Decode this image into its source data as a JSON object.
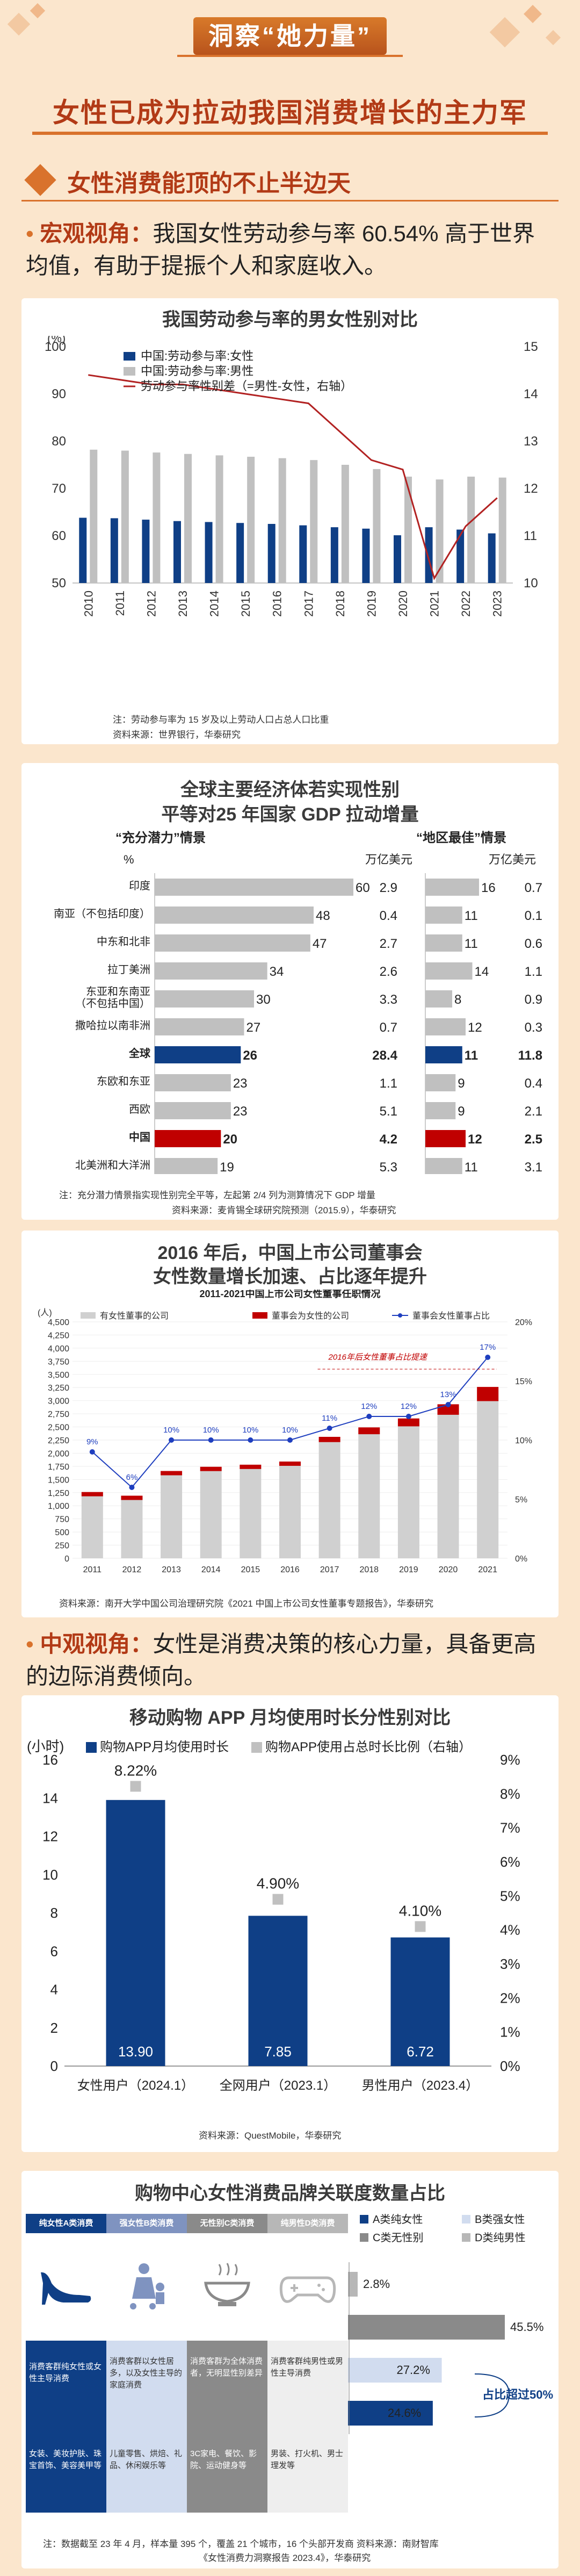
{
  "header": {
    "banner": "洞察“她力量”",
    "subtitle": "女性已成为拉动我国消费增长的主力军"
  },
  "section1": {
    "title": "女性消费能顶的不止半边天",
    "bullet_key": "宏观视角：",
    "bullet_text": "我国女性劳动参与率 60.54% 高于世界均值，有助于提振个人和家庭收入。"
  },
  "chart1": {
    "title": "我国劳动参与率的男女性别对比",
    "unit_left": "(%)",
    "legend": [
      "中国:劳动参与率:女性",
      "中国:劳动参与率:男性",
      "劳动参与率性别差（=男性-女性，右轴）"
    ],
    "note1": "注：劳动参与率为 15 岁及以上劳动人口占总人口比重",
    "note2": "资料来源：世界银行，华泰研究"
  },
  "chart2": {
    "title_line1": "全球主要经济体若实现性别",
    "title_line2": "平等对25 年国家 GDP 拉动增量",
    "col1_head": "“充分潜力”情景",
    "col2_head": "“地区最佳”情景",
    "pct_label": "%",
    "unit1": "万亿美元",
    "unit2": "万亿美元",
    "note1": "注：充分潜力情景指实现性别完全平等，左起第 2/4 列为测算情况下 GDP 增量",
    "note2": "资料来源：麦肯锡全球研究院预测（2015.9），华泰研究"
  },
  "chart3": {
    "title_line1": "2016 年后，中国上市公司董事会",
    "title_line2": "女性数量增长加速、占比逐年提升",
    "inner_title": "2011-2021中国上市公司女性董事任职情况",
    "unit_left": "(人)",
    "legend": [
      "有女性董事的公司",
      "董事会为女性的公司",
      "董事会女性董事占比"
    ],
    "annotation": "2016年后女性董事占比提速",
    "note": "资料来源：南开大学中国公司治理研究院《2021 中国上市公司女性董事专题报告》，华泰研究"
  },
  "section2": {
    "bullet_key": "中观视角：",
    "bullet_text": "女性是消费决策的核心力量，具备更高的边际消费倾向。"
  },
  "chart4": {
    "title": "移动购物 APP 月均使用时长分性别对比",
    "unit_left": "(小时)",
    "legend": [
      "购物APP月均使用时长",
      "购物APP使用占总时长比例（右轴）"
    ],
    "note": "资料来源：QuestMobile，华泰研究"
  },
  "chart5": {
    "title": "购物中心女性消费品牌关联度数量占比",
    "table_heads": [
      "纯女性A类消费",
      "强女性B类消费",
      "无性别C类消费",
      "纯男性D类消费"
    ],
    "row1": [
      "消费客群纯女性或女性主导消费",
      "消费客群以女性居多，以及女性主导的家庭消费",
      "消费客群为全体消费者，无明显性别差异",
      "消费客群纯男性或男性主导消费"
    ],
    "row2": [
      "女装、美妆护肤、珠宝首饰、美容美甲等",
      "儿童零售、烘焙、礼品、休闲娱乐等",
      "3C家电、餐饮、影院、运动健身等",
      "男装、打火机、男士理发等"
    ],
    "legend": [
      "A类纯女性",
      "B类强女性",
      "C类无性别",
      "D类纯男性"
    ],
    "bar_labels": [
      "2.8%",
      "45.5%",
      "27.2%",
      "24.6%"
    ],
    "callout": "占比超过50%",
    "note1": "注：数据截至 23 年 4 月，样本量 395 个，覆盖 21 个城市，16 个头部开发商 资料来源：南财智库",
    "note2": "《女性消费力洞察报告 2023.4》，华泰研究"
  },
  "chart_data": [
    {
      "type": "bar",
      "title": "我国劳动参与率的男女性别对比",
      "categories": [
        "2010",
        "2011",
        "2012",
        "2013",
        "2014",
        "2015",
        "2016",
        "2017",
        "2018",
        "2019",
        "2020",
        "2021",
        "2022",
        "2023"
      ],
      "series": [
        {
          "name": "中国:劳动参与率:女性",
          "values": [
            63.8,
            63.7,
            63.4,
            63.1,
            62.9,
            62.7,
            62.5,
            62.2,
            61.8,
            61.5,
            60.1,
            61.8,
            61.3,
            60.5
          ]
        },
        {
          "name": "中国:劳动参与率:男性",
          "values": [
            78.2,
            78.0,
            77.6,
            77.3,
            77.0,
            76.7,
            76.4,
            76.0,
            75.0,
            74.1,
            72.5,
            71.9,
            72.5,
            72.3
          ]
        },
        {
          "name": "劳动参与率性别差（右轴）",
          "values": [
            14.4,
            14.3,
            14.2,
            14.2,
            14.1,
            14.0,
            13.9,
            13.8,
            13.2,
            12.6,
            12.4,
            10.1,
            11.2,
            11.8
          ]
        }
      ],
      "ylim": [
        50,
        100
      ],
      "y2lim": [
        10,
        15
      ],
      "yticks": [
        50,
        60,
        70,
        80,
        90,
        100
      ],
      "y2ticks": [
        10,
        11,
        12,
        13,
        14,
        15
      ]
    },
    {
      "type": "bar",
      "title": "全球主要经济体若实现性别平等对25年国家GDP拉动增量",
      "categories": [
        "印度",
        "南亚（不包括印度）",
        "中东和北非",
        "拉丁美洲",
        "东亚和东南亚（不包括中国）",
        "撒哈拉以南非洲",
        "全球",
        "东欧和东亚",
        "西欧",
        "中国",
        "北美洲和大洋洲"
      ],
      "series": [
        {
          "name": "充分潜力 %",
          "values": [
            60,
            48,
            47,
            34,
            30,
            27,
            26,
            23,
            23,
            20,
            19
          ]
        },
        {
          "name": "充分潜力 万亿美元",
          "values": [
            2.9,
            0.4,
            2.7,
            2.6,
            3.3,
            0.7,
            28.4,
            1.1,
            5.1,
            4.2,
            5.3
          ]
        },
        {
          "name": "地区最佳 %",
          "values": [
            16,
            11,
            11,
            14,
            8,
            12,
            11,
            9,
            9,
            12,
            11
          ]
        },
        {
          "name": "地区最佳 万亿美元",
          "values": [
            0.7,
            0.1,
            0.6,
            1.1,
            0.9,
            0.3,
            11.8,
            0.4,
            2.1,
            2.5,
            3.1
          ]
        }
      ],
      "highlight": {
        "全球": "#0f3f86",
        "中国": "#c00000"
      }
    },
    {
      "type": "bar",
      "title": "2011-2021中国上市公司女性董事任职情况",
      "categories": [
        "2011",
        "2012",
        "2013",
        "2014",
        "2015",
        "2016",
        "2017",
        "2018",
        "2019",
        "2020",
        "2021"
      ],
      "series": [
        {
          "name": "有女性董事的公司",
          "values": [
            1200,
            1130,
            1600,
            1680,
            1720,
            1780,
            2250,
            2430,
            2600,
            2870,
            3200
          ]
        },
        {
          "name": "董事会为女性的公司",
          "values": [
            30,
            35,
            60,
            60,
            70,
            70,
            100,
            130,
            150,
            200,
            270
          ]
        },
        {
          "name": "董事会女性董事占比",
          "values": [
            9,
            6,
            10,
            10,
            10,
            10,
            11,
            12,
            12,
            13,
            17
          ]
        }
      ],
      "ylim": [
        0,
        4500
      ],
      "y2lim": [
        0,
        20
      ],
      "yticks": [
        0,
        250,
        500,
        750,
        1000,
        1250,
        1500,
        1750,
        2000,
        2250,
        2500,
        2750,
        3000,
        3250,
        3500,
        3750,
        4000,
        4250,
        4500
      ],
      "y2ticks": [
        0,
        5,
        10,
        15,
        20
      ]
    },
    {
      "type": "bar",
      "title": "移动购物 APP 月均使用时长分性别对比",
      "categories": [
        "女性用户（2024.1）",
        "全网用户（2023.1）",
        "男性用户（2023.4）"
      ],
      "series": [
        {
          "name": "购物APP月均使用时长",
          "values": [
            13.9,
            7.85,
            6.72
          ]
        },
        {
          "name": "购物APP使用占总时长比例（右轴）",
          "values": [
            8.22,
            4.9,
            4.1
          ]
        }
      ],
      "ylim": [
        0,
        16
      ],
      "y2lim": [
        0,
        9
      ],
      "yticks": [
        0,
        2,
        4,
        6,
        8,
        10,
        12,
        14,
        16
      ],
      "y2ticks": [
        0,
        1,
        2,
        3,
        4,
        5,
        6,
        7,
        8,
        9
      ]
    },
    {
      "type": "bar",
      "title": "购物中心女性消费品牌关联度数量占比",
      "categories": [
        "A类纯女性",
        "D类纯男性",
        "C类无性别",
        "B类强女性"
      ],
      "values": [
        24.6,
        2.8,
        45.5,
        27.2
      ]
    }
  ]
}
